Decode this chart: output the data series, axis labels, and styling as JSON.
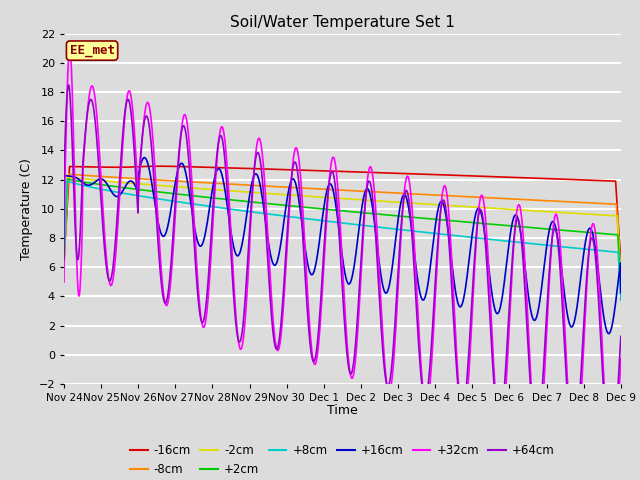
{
  "title": "Soil/Water Temperature Set 1",
  "xlabel": "Time",
  "ylabel": "Temperature (C)",
  "ylim": [
    -2,
    22
  ],
  "yticks": [
    -2,
    0,
    2,
    4,
    6,
    8,
    10,
    12,
    14,
    16,
    18,
    20,
    22
  ],
  "background_color": "#dcdcdc",
  "plot_bg_color": "#dcdcdc",
  "grid_color": "#ffffff",
  "watermark_text": "EE_met",
  "watermark_fg": "#8B0000",
  "watermark_bg": "#FFFF99",
  "series": [
    {
      "label": "-16cm",
      "color": "#dd0000",
      "lw": 1.2
    },
    {
      "label": "-8cm",
      "color": "#ff8800",
      "lw": 1.2
    },
    {
      "label": "-2cm",
      "color": "#dddd00",
      "lw": 1.2
    },
    {
      "label": "+2cm",
      "color": "#00cc00",
      "lw": 1.2
    },
    {
      "label": "+8cm",
      "color": "#00cccc",
      "lw": 1.2
    },
    {
      "label": "+16cm",
      "color": "#0000cc",
      "lw": 1.2
    },
    {
      "label": "+32cm",
      "color": "#ff00ff",
      "lw": 1.2
    },
    {
      "label": "+64cm",
      "color": "#9900cc",
      "lw": 1.2
    }
  ],
  "xtick_labels": [
    "Nov 24",
    "Nov 25",
    "Nov 26",
    "Nov 27",
    "Nov 28",
    "Nov 29",
    "Nov 30",
    "Dec 1",
    "Dec 2",
    "Dec 3",
    "Dec 4",
    "Dec 5",
    "Dec 6",
    "Dec 7",
    "Dec 8",
    "Dec 9"
  ],
  "n_points": 1500
}
